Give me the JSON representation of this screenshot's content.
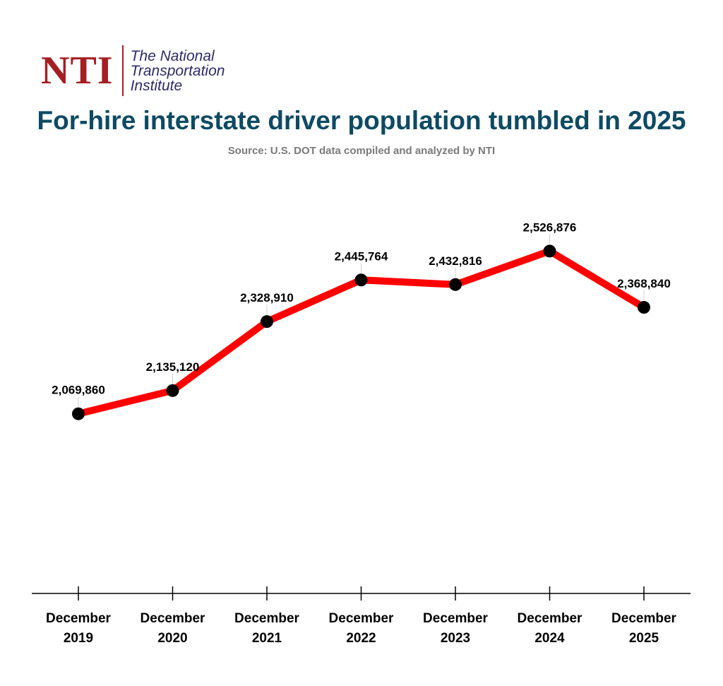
{
  "logo": {
    "mark": "NTI",
    "line1": "The National",
    "line2": "Transportation",
    "line3": "Institute"
  },
  "colors": {
    "line": "#ff0000",
    "marker": "#000000",
    "title": "#0e4a63",
    "subtitle": "#7a7a7a",
    "brand": "#a51e23",
    "brand_text": "#2e2a6b"
  },
  "chart_data": {
    "type": "line",
    "title": "For-hire interstate driver population tumbled in 2025",
    "subtitle": "Source: U.S. DOT data compiled and analyzed by NTI",
    "categories": [
      [
        "December",
        "2019"
      ],
      [
        "December",
        "2020"
      ],
      [
        "December",
        "2021"
      ],
      [
        "December",
        "2022"
      ],
      [
        "December",
        "2023"
      ],
      [
        "December",
        "2024"
      ],
      [
        "December",
        "2025"
      ]
    ],
    "values": [
      2069860,
      2135120,
      2328910,
      2445764,
      2432816,
      2526876,
      2368840
    ],
    "value_labels": [
      "2,069,860",
      "2,135,120",
      "2,328,910",
      "2,445,764",
      "2,432,816",
      "2,526,876",
      "2,368,840"
    ],
    "xlabel": "",
    "ylabel": "",
    "ylim": [
      1605000,
      2609000
    ],
    "grid": false,
    "legend": "none"
  }
}
